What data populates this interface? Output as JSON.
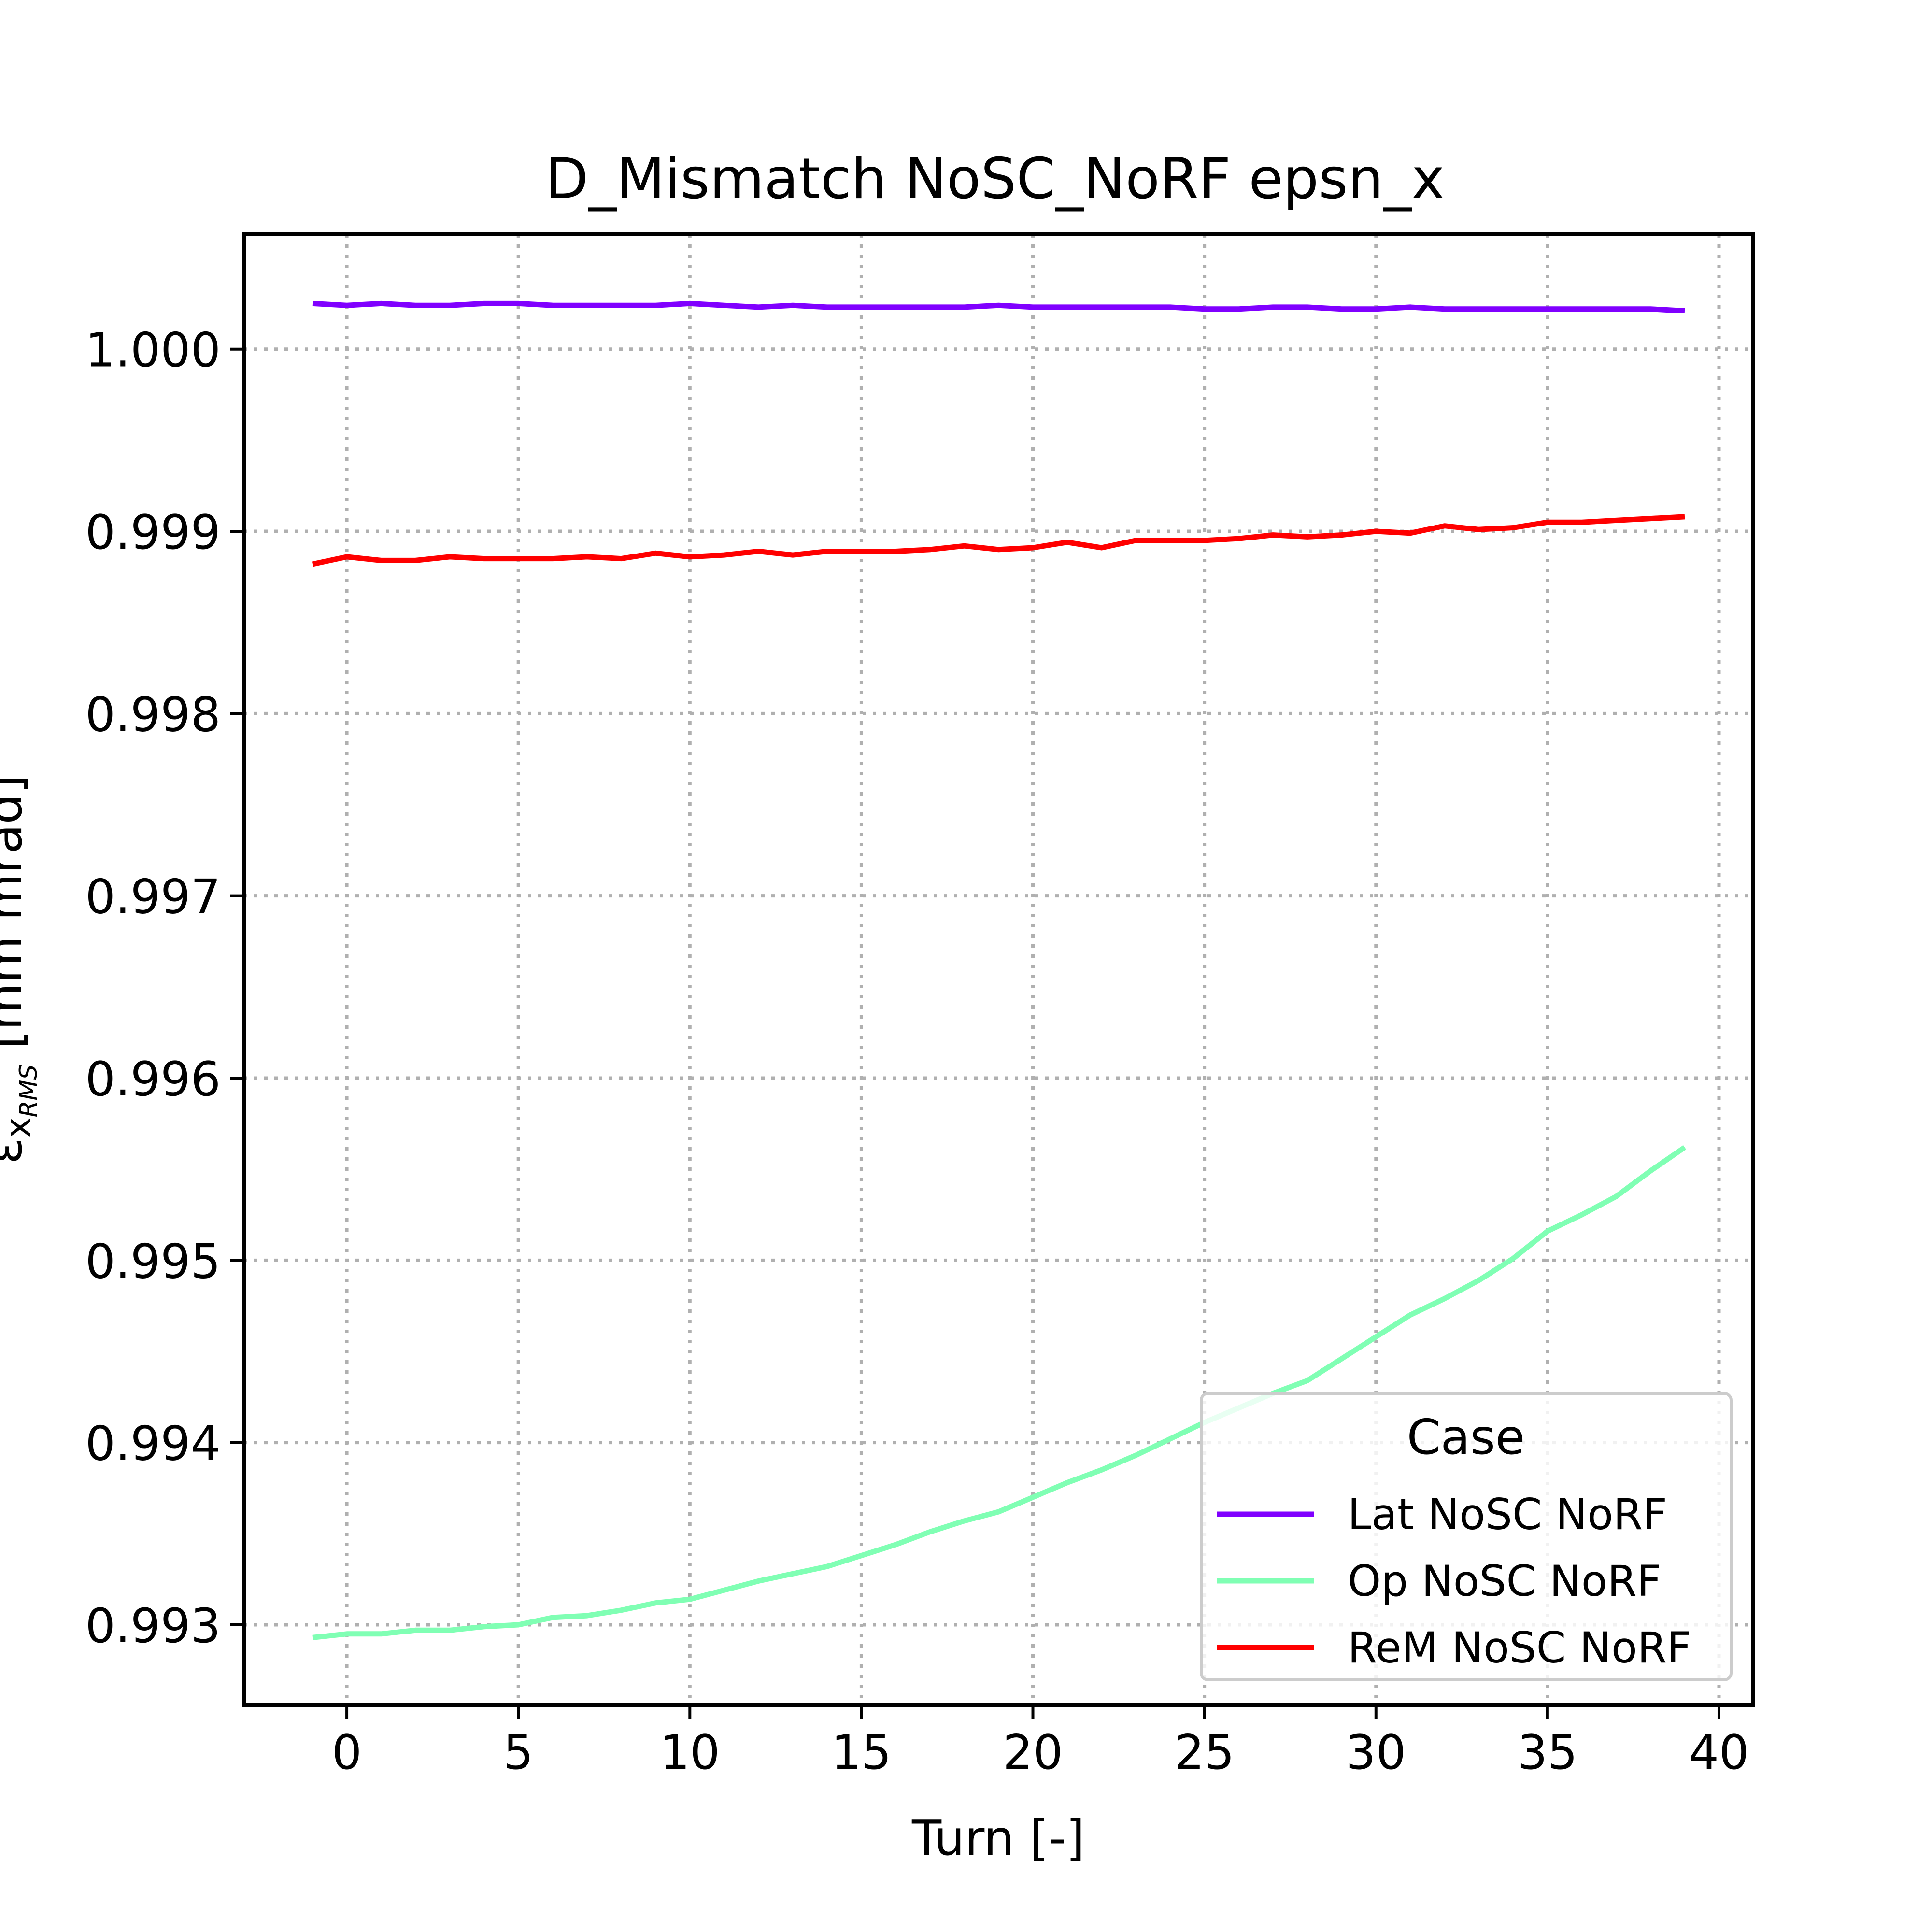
{
  "chart_data": {
    "type": "line",
    "title": "D_Mismatch NoSC_NoRF epsn_x",
    "xlabel": "Turn [-]",
    "ylabel_main": "ε",
    "ylabel_sub": "x",
    "ylabel_subsub": "RMS",
    "ylabel_unit": " [mm mrad]",
    "xlim": [
      -3,
      41
    ],
    "ylim": [
      0.99256,
      1.00063
    ],
    "xticks": [
      0,
      5,
      10,
      15,
      20,
      25,
      30,
      35,
      40
    ],
    "xtick_labels": [
      "0",
      "5",
      "10",
      "15",
      "20",
      "25",
      "30",
      "35",
      "40"
    ],
    "yticks": [
      0.993,
      0.994,
      0.995,
      0.996,
      0.997,
      0.998,
      0.999,
      1.0
    ],
    "ytick_labels": [
      "0.993",
      "0.994",
      "0.995",
      "0.996",
      "0.997",
      "0.998",
      "0.999",
      "1.000"
    ],
    "grid": true,
    "legend": {
      "title": "Case",
      "placement": "lower-right"
    },
    "x": [
      -1,
      0,
      1,
      2,
      3,
      4,
      5,
      6,
      7,
      8,
      9,
      10,
      11,
      12,
      13,
      14,
      15,
      16,
      17,
      18,
      19,
      20,
      21,
      22,
      23,
      24,
      25,
      26,
      27,
      28,
      29,
      30,
      31,
      32,
      33,
      34,
      35,
      36,
      37,
      38,
      39
    ],
    "series": [
      {
        "name": "Lat NoSC NoRF",
        "color": "#8000ff",
        "values": [
          1.00025,
          1.00024,
          1.00025,
          1.00024,
          1.00024,
          1.00025,
          1.00025,
          1.00024,
          1.00024,
          1.00024,
          1.00024,
          1.00025,
          1.00024,
          1.00023,
          1.00024,
          1.00023,
          1.00023,
          1.00023,
          1.00023,
          1.00023,
          1.00024,
          1.00023,
          1.00023,
          1.00023,
          1.00023,
          1.00023,
          1.00022,
          1.00022,
          1.00023,
          1.00023,
          1.00022,
          1.00022,
          1.00023,
          1.00022,
          1.00022,
          1.00022,
          1.00022,
          1.00022,
          1.00022,
          1.00022,
          1.00021
        ]
      },
      {
        "name": "Op NoSC NoRF",
        "color": "#80ffb4",
        "values": [
          0.99293,
          0.99295,
          0.99295,
          0.99297,
          0.99297,
          0.99299,
          0.993,
          0.99304,
          0.99305,
          0.99308,
          0.99312,
          0.99314,
          0.99319,
          0.99324,
          0.99328,
          0.99332,
          0.99338,
          0.99344,
          0.99351,
          0.99357,
          0.99362,
          0.9937,
          0.99378,
          0.99385,
          0.99393,
          0.99402,
          0.99411,
          0.99419,
          0.99427,
          0.99434,
          0.99446,
          0.99458,
          0.9947,
          0.99479,
          0.99489,
          0.99501,
          0.99516,
          0.99525,
          0.99535,
          0.99549,
          0.99562
        ]
      },
      {
        "name": "ReM NoSC NoRF",
        "color": "#ff0000",
        "values": [
          0.99882,
          0.99886,
          0.99884,
          0.99884,
          0.99886,
          0.99885,
          0.99885,
          0.99885,
          0.99886,
          0.99885,
          0.99888,
          0.99886,
          0.99887,
          0.99889,
          0.99887,
          0.99889,
          0.99889,
          0.99889,
          0.9989,
          0.99892,
          0.9989,
          0.99891,
          0.99894,
          0.99891,
          0.99895,
          0.99895,
          0.99895,
          0.99896,
          0.99898,
          0.99897,
          0.99898,
          0.999,
          0.99899,
          0.99903,
          0.99901,
          0.99902,
          0.99905,
          0.99905,
          0.99906,
          0.99907,
          0.99908
        ]
      }
    ]
  }
}
